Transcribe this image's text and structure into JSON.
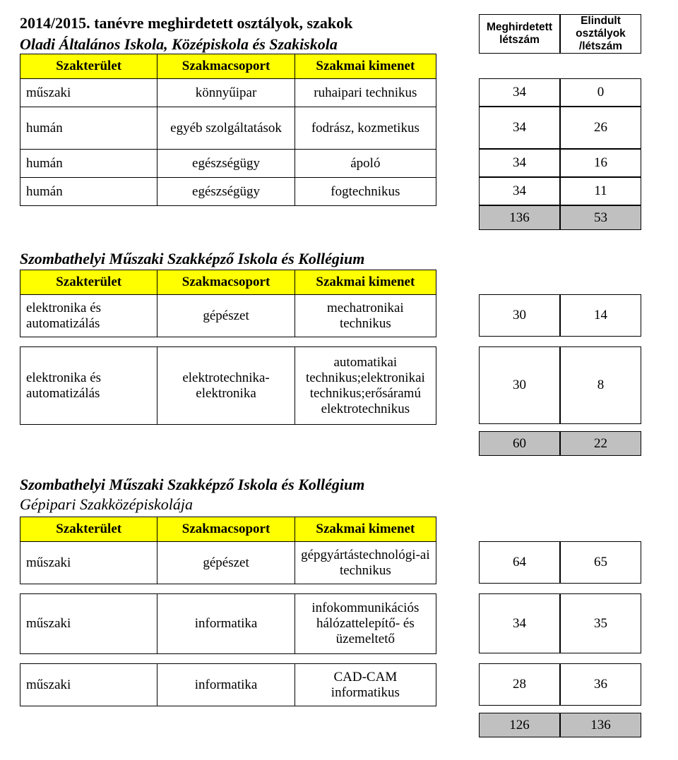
{
  "page": {
    "main_title": "2014/2015. tanévre meghirdetett osztályok, szakok",
    "num_header_1": "Meghirdetett létszám",
    "num_header_2": "Elindult osztályok /létszám",
    "table_headers": {
      "szakterulet": "Szakterület",
      "szakmacsoport": "Szakmacsoport",
      "szakmai_kimenet": "Szakmai kimenet"
    }
  },
  "colors": {
    "header_bg": "#ffff00",
    "total_bg": "#c0c0c0",
    "border": "#000000",
    "text": "#000000",
    "background": "#ffffff"
  },
  "sections": [
    {
      "school": "Oladi Általános Iskola, Középiskola és Szakiskola",
      "rows": [
        {
          "c1": "műszaki",
          "c2": "könnyűipar",
          "c3": "ruhaipari technikus",
          "n1": "34",
          "n2": "0",
          "h": "h40"
        },
        {
          "c1": "humán",
          "c2": "egyéb szolgáltatások",
          "c3": "fodrász, kozmetikus",
          "n1": "34",
          "n2": "26",
          "h": "h60"
        },
        {
          "c1": "humán",
          "c2": "egészségügy",
          "c3": "ápoló",
          "n1": "34",
          "n2": "16",
          "h": "h40"
        },
        {
          "c1": "humán",
          "c2": "egészségügy",
          "c3": "fogtechnikus",
          "n1": "34",
          "n2": "11",
          "h": "h40"
        }
      ],
      "total": {
        "n1": "136",
        "n2": "53"
      }
    },
    {
      "school": "Szombathelyi Műszaki Szakképző Iskola és Kollégium",
      "rows": [
        {
          "c1": "elektronika és automatizálás",
          "c2": "gépészet",
          "c3": "mechatronikai technikus",
          "n1": "30",
          "n2": "14",
          "h": "h60"
        },
        {
          "c1": "elektronika és automatizálás",
          "c2": "elektrotechnika-elektronika",
          "c3": "automatikai technikus;elektronikai technikus;erősáramú elektrotechnikus",
          "n1": "30",
          "n2": "8",
          "h": "h110",
          "sep": true
        }
      ],
      "total": {
        "n1": "60",
        "n2": "22"
      }
    },
    {
      "school": "Szombathelyi Műszaki Szakképző Iskola és Kollégium",
      "sub_school": "Gépipari Szakközépiskolája",
      "rows": [
        {
          "c1": "műszaki",
          "c2": "gépészet",
          "c3": "gépgyártástechnológi-ai technikus",
          "n1": "64",
          "n2": "65",
          "h": "h60"
        },
        {
          "c1": "műszaki",
          "c2": "informatika",
          "c3": "infokommunikációs hálózattelepítő- és üzemeltető",
          "n1": "34",
          "n2": "35",
          "h": "h85",
          "sep": true
        },
        {
          "c1": "műszaki",
          "c2": "informatika",
          "c3": "CAD-CAM informatikus",
          "n1": "28",
          "n2": "36",
          "h": "h60",
          "sep": true
        }
      ],
      "total": {
        "n1": "126",
        "n2": "136"
      }
    }
  ]
}
